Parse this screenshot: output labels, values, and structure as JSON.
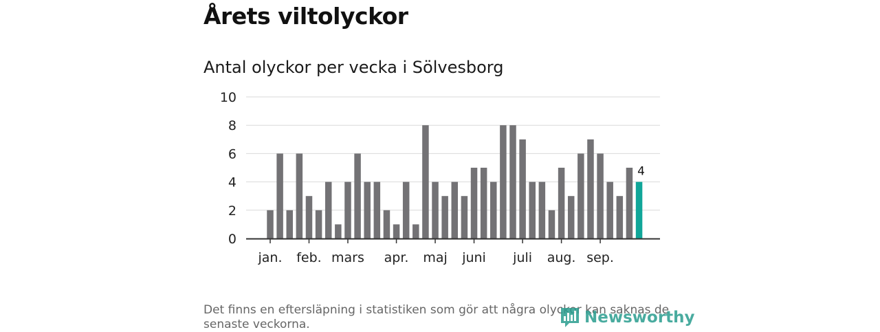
{
  "header": {
    "title": "Årets viltolyckor",
    "subtitle": "Antal olyckor per vecka i Sölvesborg"
  },
  "footnote": "Det finns en eftersläpning i statistiken som gör att några olyckor kan saknas de senaste veckorna.",
  "logo": {
    "text": "Newsworthy"
  },
  "colors": {
    "bar": "#737275",
    "highlight": "#10a699",
    "grid": "#d9d9d9",
    "axis": "#333333",
    "logo": "#2a9d8f"
  },
  "chart_data": {
    "type": "bar",
    "title": "Antal olyckor per vecka i Sölvesborg",
    "xlabel": "",
    "ylabel": "",
    "ylim": [
      0,
      10
    ],
    "yticks": [
      0,
      2,
      4,
      6,
      8,
      10
    ],
    "weeks": [
      1,
      2,
      3,
      4,
      5,
      6,
      7,
      8,
      9,
      10,
      11,
      12,
      13,
      14,
      15,
      16,
      17,
      18,
      19,
      20,
      21,
      22,
      23,
      24,
      25,
      26,
      27,
      28,
      29,
      30,
      31,
      32,
      33,
      34,
      35,
      36,
      37,
      38,
      39
    ],
    "values": [
      2,
      6,
      2,
      6,
      3,
      2,
      4,
      1,
      4,
      6,
      4,
      4,
      2,
      1,
      4,
      1,
      8,
      4,
      3,
      4,
      3,
      5,
      5,
      4,
      8,
      8,
      7,
      4,
      4,
      2,
      5,
      3,
      6,
      7,
      6,
      4,
      3,
      5,
      4
    ],
    "highlight_index": 38,
    "highlight_label": "4",
    "month_labels": [
      {
        "label": "jan.",
        "week": 1
      },
      {
        "label": "feb.",
        "week": 5
      },
      {
        "label": "mars",
        "week": 9
      },
      {
        "label": "apr.",
        "week": 14
      },
      {
        "label": "maj",
        "week": 18
      },
      {
        "label": "juni",
        "week": 22
      },
      {
        "label": "juli",
        "week": 27
      },
      {
        "label": "aug.",
        "week": 31
      },
      {
        "label": "sep.",
        "week": 35
      }
    ],
    "grid": true
  }
}
